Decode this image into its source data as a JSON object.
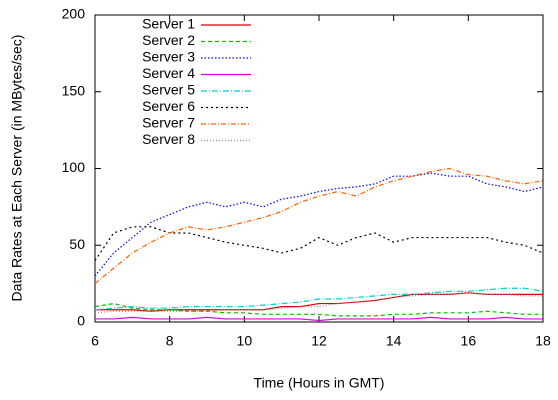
{
  "chart_data": {
    "type": "line",
    "x_label": "Time (Hours in GMT)",
    "y_label": "Data Rates at Each Server (in MBytes/sec)",
    "x": [
      6,
      6.5,
      7,
      7.5,
      8,
      8.5,
      9,
      9.5,
      10,
      10.5,
      11,
      11.5,
      12,
      12.5,
      13,
      13.5,
      14,
      14.5,
      15,
      15.5,
      16,
      16.5,
      17,
      17.5,
      18
    ],
    "xlim": [
      6,
      18
    ],
    "xticks": [
      6,
      8,
      10,
      12,
      14,
      16,
      18
    ],
    "ylim": [
      0,
      200
    ],
    "yticks": [
      0,
      50,
      100,
      150,
      200
    ],
    "grid": false,
    "legend": "top-left",
    "series": [
      {
        "name": "Server 1",
        "color": "#e00000",
        "values": [
          8,
          8,
          8,
          7,
          8,
          8,
          8,
          8,
          8,
          8,
          10,
          10,
          12,
          12,
          13,
          14,
          16,
          18,
          18,
          18,
          19,
          18,
          18,
          18,
          18
        ]
      },
      {
        "name": "Server 2",
        "color": "#00c000",
        "values": [
          10,
          12,
          9,
          8,
          8,
          7,
          7,
          6,
          6,
          5,
          5,
          5,
          5,
          4,
          4,
          4,
          5,
          5,
          6,
          6,
          6,
          7,
          6,
          5,
          5
        ]
      },
      {
        "name": "Server 3",
        "color": "#0000ff",
        "values": [
          30,
          45,
          55,
          65,
          70,
          75,
          78,
          75,
          78,
          75,
          80,
          82,
          85,
          87,
          88,
          90,
          95,
          95,
          97,
          95,
          95,
          90,
          88,
          85,
          88
        ]
      },
      {
        "name": "Server 4",
        "color": "#e000e0",
        "values": [
          2,
          2,
          3,
          2,
          2,
          2,
          3,
          2,
          2,
          2,
          2,
          2,
          1,
          2,
          2,
          2,
          2,
          2,
          3,
          2,
          2,
          2,
          3,
          2,
          2
        ]
      },
      {
        "name": "Server 5",
        "color": "#00d0d0",
        "values": [
          8,
          9,
          10,
          9,
          9,
          10,
          10,
          10,
          10,
          11,
          12,
          13,
          15,
          15,
          16,
          17,
          18,
          18,
          19,
          20,
          20,
          21,
          22,
          22,
          20
        ]
      },
      {
        "name": "Server 6",
        "color": "#000000",
        "values": [
          40,
          58,
          62,
          62,
          58,
          58,
          55,
          52,
          50,
          48,
          45,
          48,
          55,
          50,
          55,
          58,
          52,
          55,
          55,
          55,
          55,
          55,
          52,
          50,
          45
        ]
      },
      {
        "name": "Server 7",
        "color": "#ff6000",
        "values": [
          25,
          35,
          45,
          52,
          58,
          62,
          60,
          62,
          65,
          68,
          72,
          78,
          82,
          85,
          82,
          88,
          92,
          95,
          98,
          100,
          96,
          95,
          92,
          90,
          92
        ]
      },
      {
        "name": "Server 8",
        "color": "#909090",
        "values": [
          6,
          7,
          7,
          7,
          7,
          7,
          7,
          8,
          8,
          8,
          9,
          10,
          10,
          12,
          13,
          14,
          16,
          17,
          18,
          18,
          19,
          18,
          18,
          17,
          17
        ]
      }
    ]
  }
}
